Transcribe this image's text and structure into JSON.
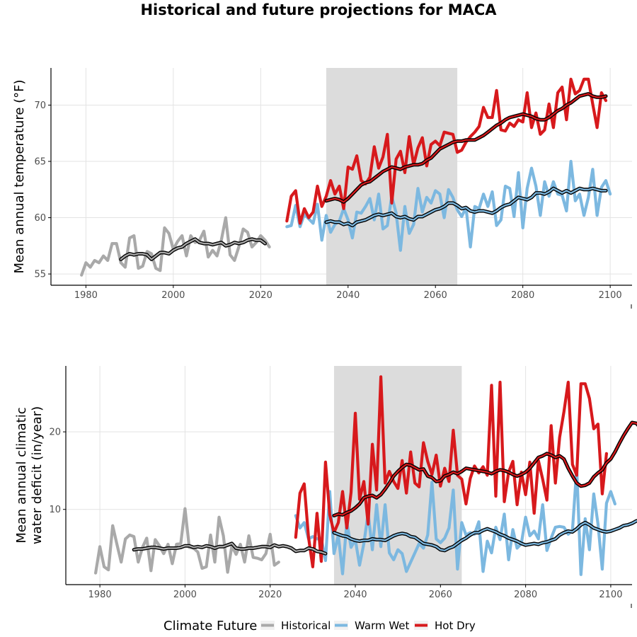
{
  "title": "Historical and future projections for MACA",
  "colors": {
    "Historical": "#a9a9a9",
    "Warm Wet": "#7cb8e0",
    "Hot Dry": "#d7191c",
    "smooth": "#000000",
    "band": "#dcdcdc"
  },
  "legend": {
    "title": "Climate Future",
    "items": [
      "Historical",
      "Warm Wet",
      "Hot Dry"
    ]
  },
  "chart_data": [
    {
      "type": "line",
      "ylabel": "Mean annual temperature (°F)",
      "xlim": [
        1972,
        2105
      ],
      "ylim": [
        54.0,
        73.3
      ],
      "xticks": [
        1980,
        2000,
        2020,
        2040,
        2060,
        2080,
        2100
      ],
      "yticks": [
        55,
        60,
        65,
        70
      ],
      "band": [
        2035,
        2065
      ],
      "series": [
        {
          "name": "Historical",
          "x_start": 1979,
          "values": [
            54.9,
            56.0,
            55.6,
            56.2,
            56.0,
            56.6,
            56.2,
            57.7,
            57.7,
            56.0,
            55.6,
            58.2,
            58.4,
            55.5,
            55.7,
            57.0,
            56.8,
            55.5,
            55.3,
            59.1,
            58.6,
            57.2,
            57.9,
            58.4,
            56.6,
            58.4,
            57.8,
            58.0,
            58.8,
            56.5,
            57.1,
            56.6,
            58.0,
            60.0,
            56.7,
            56.2,
            57.4,
            59.0,
            58.7,
            57.4,
            57.8,
            58.4,
            58.0,
            57.4
          ]
        },
        {
          "name": "Warm Wet",
          "x_start": 2026,
          "values": [
            59.2,
            59.3,
            61.1,
            59.2,
            60.3,
            59.9,
            59.5,
            61.2,
            58.0,
            60.2,
            58.7,
            59.4,
            59.7,
            60.8,
            59.8,
            58.2,
            60.5,
            60.4,
            61.0,
            61.7,
            59.8,
            62.1,
            59.0,
            59.3,
            61.9,
            60.4,
            57.1,
            61.0,
            58.6,
            59.4,
            62.6,
            60.5,
            61.8,
            61.3,
            62.4,
            62.1,
            60.0,
            62.5,
            61.8,
            60.7,
            60.1,
            60.9,
            57.4,
            61.0,
            60.8,
            62.1,
            61.0,
            62.3,
            59.3,
            59.8,
            62.8,
            62.6,
            60.1,
            64.0,
            59.1,
            62.6,
            64.4,
            62.8,
            60.2,
            63.2,
            61.9,
            63.2,
            62.1,
            62.0,
            60.6,
            65.0,
            61.5,
            62.1,
            60.2,
            61.8,
            64.3,
            60.2,
            62.7,
            63.3,
            62.1
          ]
        },
        {
          "name": "Hot Dry",
          "x_start": 2026,
          "values": [
            59.7,
            61.9,
            62.4,
            59.5,
            60.8,
            60.0,
            60.5,
            62.8,
            61.0,
            61.9,
            63.3,
            62.1,
            62.8,
            60.8,
            64.5,
            64.3,
            65.5,
            63.3,
            63.0,
            63.6,
            66.3,
            64.4,
            65.4,
            67.4,
            61.3,
            65.2,
            65.9,
            64.0,
            67.2,
            64.7,
            66.2,
            67.1,
            64.6,
            66.5,
            66.8,
            66.4,
            67.6,
            67.5,
            67.4,
            65.8,
            66.0,
            66.7,
            67.2,
            67.6,
            68.1,
            69.8,
            68.9,
            68.9,
            71.3,
            67.8,
            67.7,
            68.4,
            68.1,
            68.7,
            68.5,
            71.1,
            68.0,
            69.3,
            67.4,
            67.8,
            70.1,
            68.0,
            71.1,
            71.6,
            68.7,
            72.3,
            71.0,
            71.3,
            72.3,
            72.3,
            70.1,
            68.0,
            71.1,
            70.4
          ]
        }
      ],
      "smooth": [
        {
          "name": "Historical",
          "x_start": 1988,
          "values": [
            56.3,
            56.6,
            56.8,
            56.7,
            56.8,
            56.8,
            56.7,
            56.3,
            56.6,
            56.9,
            56.9,
            56.8,
            57.1,
            57.3,
            57.4,
            57.7,
            57.9,
            58.1,
            57.8,
            57.7,
            57.7,
            57.6,
            57.7,
            57.8,
            57.5,
            57.6,
            57.8,
            57.7,
            57.8,
            58.0,
            58.1,
            58.0,
            58.0,
            57.7
          ]
        },
        {
          "name": "Warm Wet",
          "x_start": 2035,
          "values": [
            59.6,
            59.7,
            59.6,
            59.6,
            59.4,
            59.5,
            59.3,
            59.6,
            59.7,
            59.8,
            60.0,
            60.2,
            60.3,
            60.2,
            60.3,
            60.4,
            60.1,
            60.0,
            60.1,
            59.9,
            59.8,
            60.1,
            60.1,
            60.3,
            60.5,
            60.7,
            60.8,
            61.0,
            61.3,
            61.3,
            61.1,
            60.8,
            60.9,
            60.6,
            60.5,
            60.6,
            60.6,
            60.5,
            60.4,
            60.6,
            60.9,
            61.1,
            61.2,
            61.5,
            61.8,
            61.7,
            61.6,
            61.8,
            62.2,
            62.2,
            62.1,
            62.3,
            62.6,
            62.4,
            62.2,
            62.4,
            62.2,
            62.4,
            62.6,
            62.5,
            62.5,
            62.6,
            62.5,
            62.4,
            62.4
          ]
        },
        {
          "name": "Hot Dry",
          "x_start": 2035,
          "values": [
            61.5,
            61.6,
            61.7,
            61.6,
            61.4,
            61.7,
            62.1,
            62.5,
            62.9,
            63.1,
            63.2,
            63.5,
            63.8,
            64.1,
            64.3,
            64.5,
            64.4,
            64.3,
            64.5,
            64.6,
            64.7,
            64.7,
            64.8,
            65.1,
            65.3,
            65.7,
            66.1,
            66.3,
            66.5,
            66.7,
            66.8,
            66.8,
            66.9,
            66.9,
            66.9,
            67.1,
            67.3,
            67.6,
            67.9,
            68.2,
            68.4,
            68.7,
            68.9,
            69.0,
            69.1,
            69.2,
            69.1,
            69.0,
            68.8,
            68.7,
            68.7,
            68.9,
            69.2,
            69.5,
            69.7,
            70.0,
            70.2,
            70.5,
            70.8,
            70.9,
            71.0,
            70.8,
            70.7,
            70.7,
            70.8
          ]
        }
      ]
    },
    {
      "type": "line",
      "ylabel": "Mean annual climatic\nwater deficit (in/year)",
      "xlim": [
        1972,
        2105
      ],
      "ylim": [
        0.3,
        28.5
      ],
      "xticks": [
        1980,
        2000,
        2020,
        2040,
        2060,
        2080,
        2100
      ],
      "yticks": [
        10,
        20
      ],
      "band": [
        2035,
        2065
      ],
      "series": [
        {
          "name": "Historical",
          "x_start": 1979,
          "values": [
            1.8,
            5.2,
            2.6,
            2.2,
            7.9,
            5.5,
            3.2,
            6.2,
            6.7,
            6.5,
            3.2,
            5.1,
            6.3,
            2.1,
            6.1,
            5.3,
            4.3,
            5.5,
            3.0,
            5.5,
            5.6,
            10.1,
            5.1,
            5.0,
            4.5,
            2.4,
            2.6,
            6.7,
            3.2,
            9.0,
            6.6,
            1.9,
            5.3,
            4.2,
            5.5,
            3.2,
            6.6,
            3.8,
            3.7,
            3.5,
            4.3,
            6.8,
            2.8,
            3.2
          ]
        },
        {
          "name": "Warm Wet",
          "x_start": 2026,
          "values": [
            9.2,
            7.6,
            8.3,
            6.2,
            6.5,
            6.2,
            6.3,
            3.4,
            12.3,
            4.3,
            6.7,
            1.7,
            8.4,
            5.1,
            6.1,
            2.8,
            5.6,
            9.5,
            4.8,
            10.6,
            5.2,
            10.6,
            4.4,
            3.5,
            4.8,
            4.3,
            2.0,
            3.2,
            4.4,
            5.6,
            5.0,
            6.7,
            13.5,
            6.2,
            5.7,
            6.3,
            7.6,
            12.5,
            2.3,
            8.3,
            6.7,
            7.0,
            6.8,
            8.4,
            2.0,
            5.9,
            4.4,
            7.7,
            6.1,
            9.4,
            3.5,
            7.4,
            5.0,
            5.6,
            9.0,
            6.6,
            7.2,
            6.2,
            10.6,
            4.7,
            6.3,
            7.7,
            7.8,
            7.7,
            6.8,
            7.3,
            15.3,
            1.6,
            8.8,
            4.8,
            12.0,
            8.1,
            2.3,
            10.8,
            12.3,
            10.7
          ]
        },
        {
          "name": "Hot Dry",
          "x_start": 2026,
          "values": [
            6.4,
            12.1,
            13.3,
            6.4,
            2.6,
            9.5,
            3.3,
            16.1,
            9.3,
            7.0,
            8.3,
            12.3,
            7.6,
            12.2,
            22.4,
            11.3,
            13.6,
            8.1,
            18.4,
            12.5,
            27.1,
            13.4,
            14.9,
            13.6,
            12.7,
            16.3,
            12.1,
            17.4,
            13.4,
            12.9,
            18.6,
            16.2,
            14.5,
            17.0,
            13.0,
            15.3,
            13.6,
            20.2,
            14.4,
            13.9,
            10.7,
            14.0,
            15.6,
            14.7,
            15.5,
            14.4,
            26.0,
            11.7,
            26.4,
            11.0,
            14.8,
            16.2,
            10.6,
            14.8,
            11.9,
            16.1,
            9.5,
            16.3,
            13.9,
            11.2,
            20.8,
            13.4,
            19.3,
            22.6,
            26.4,
            15.8,
            14.4,
            26.2,
            26.2,
            24.3,
            20.4,
            21.0,
            12.0,
            17.2
          ]
        }
      ],
      "smooth": [
        {
          "name": "Historical",
          "x_start": 1988,
          "values": [
            4.8,
            4.9,
            4.9,
            5.0,
            5.1,
            5.1,
            5.0,
            4.9,
            5.0,
            5.0,
            5.0,
            5.1,
            5.3,
            5.3,
            5.1,
            5.2,
            5.1,
            5.3,
            5.2,
            5.0,
            5.2,
            5.2,
            5.4,
            5.6,
            5.0,
            4.9,
            4.9,
            5.0,
            5.0,
            5.1,
            5.2,
            5.2,
            5.1,
            5.4,
            5.2,
            5.3,
            5.2,
            5.0,
            4.6,
            4.7,
            4.7,
            5.0,
            4.9,
            4.6,
            4.5,
            4.3
          ]
        },
        {
          "name": "Warm Wet",
          "x_start": 2035,
          "values": [
            7.0,
            6.8,
            6.6,
            6.5,
            6.2,
            6.0,
            5.9,
            6.0,
            6.0,
            6.2,
            6.1,
            6.1,
            6.0,
            6.3,
            6.6,
            6.8,
            6.9,
            6.8,
            6.5,
            6.4,
            6.0,
            5.6,
            5.5,
            5.4,
            5.2,
            4.8,
            4.7,
            5.0,
            5.2,
            5.6,
            6.0,
            6.3,
            6.7,
            7.0,
            7.0,
            7.3,
            7.5,
            7.3,
            7.1,
            6.8,
            6.6,
            6.3,
            6.1,
            5.9,
            5.6,
            5.4,
            5.5,
            5.6,
            5.5,
            5.7,
            5.8,
            6.0,
            6.2,
            6.7,
            7.0,
            7.2,
            7.1,
            7.5,
            8.0,
            8.3,
            8.0,
            7.6,
            7.4,
            7.2,
            7.1,
            7.2,
            7.4,
            7.6,
            7.9,
            8.0,
            8.2,
            8.5,
            8.6
          ]
        },
        {
          "name": "Hot Dry",
          "x_start": 2035,
          "values": [
            9.2,
            9.4,
            9.3,
            9.6,
            9.8,
            10.2,
            10.7,
            11.5,
            11.7,
            11.8,
            11.5,
            11.9,
            12.6,
            13.4,
            14.3,
            14.9,
            15.4,
            15.8,
            15.7,
            15.4,
            15.1,
            15.2,
            14.3,
            14.1,
            13.6,
            13.7,
            14.3,
            14.5,
            14.8,
            14.6,
            14.9,
            15.3,
            15.2,
            15.1,
            15.0,
            14.9,
            14.8,
            14.6,
            14.9,
            15.1,
            15.0,
            14.8,
            14.5,
            14.3,
            14.5,
            14.8,
            15.3,
            16.0,
            16.7,
            16.9,
            17.2,
            17.0,
            16.7,
            16.9,
            16.5,
            15.3,
            14.3,
            13.4,
            13.0,
            13.1,
            13.4,
            14.2,
            14.7,
            15.1,
            16.0,
            16.5,
            17.4,
            18.5,
            19.5,
            20.4,
            21.2,
            21.1,
            20.5,
            20.0
          ]
        }
      ]
    }
  ]
}
